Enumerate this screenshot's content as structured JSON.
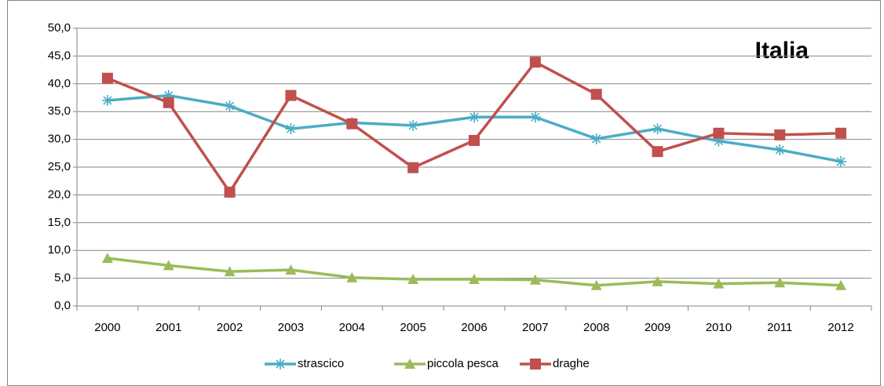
{
  "chart_data": {
    "type": "line",
    "title": "Italia",
    "categories": [
      "2000",
      "2001",
      "2002",
      "2003",
      "2004",
      "2005",
      "2006",
      "2007",
      "2008",
      "2009",
      "2010",
      "2011",
      "2012"
    ],
    "series": [
      {
        "name": "strascico",
        "color": "#4bacc6",
        "marker": "asterisk",
        "values": [
          37.0,
          37.9,
          36.0,
          31.9,
          33.0,
          32.5,
          34.0,
          34.0,
          30.1,
          31.9,
          29.7,
          28.1,
          26.0
        ]
      },
      {
        "name": "piccola pesca",
        "color": "#9bbb59",
        "marker": "triangle",
        "values": [
          8.6,
          7.3,
          6.2,
          6.5,
          5.1,
          4.8,
          4.8,
          4.7,
          3.7,
          4.4,
          4.0,
          4.2,
          3.7
        ]
      },
      {
        "name": "draghe",
        "color": "#c0504d",
        "marker": "square",
        "values": [
          41.0,
          36.6,
          20.5,
          37.9,
          32.8,
          24.9,
          29.8,
          43.9,
          38.1,
          27.8,
          31.1,
          30.8,
          31.1
        ]
      }
    ],
    "ylim": [
      0,
      50
    ],
    "yticks": [
      {
        "value": 0,
        "label": "0,0"
      },
      {
        "value": 5,
        "label": "5,0"
      },
      {
        "value": 10,
        "label": "10,0"
      },
      {
        "value": 15,
        "label": "15,0"
      },
      {
        "value": 20,
        "label": "20,0"
      },
      {
        "value": 25,
        "label": "25,0"
      },
      {
        "value": 30,
        "label": "30,0"
      },
      {
        "value": 35,
        "label": "35,0"
      },
      {
        "value": 40,
        "label": "40,0"
      },
      {
        "value": 45,
        "label": "45,0"
      },
      {
        "value": 50,
        "label": "50,0"
      }
    ],
    "grid": true,
    "legend": "bottom"
  }
}
